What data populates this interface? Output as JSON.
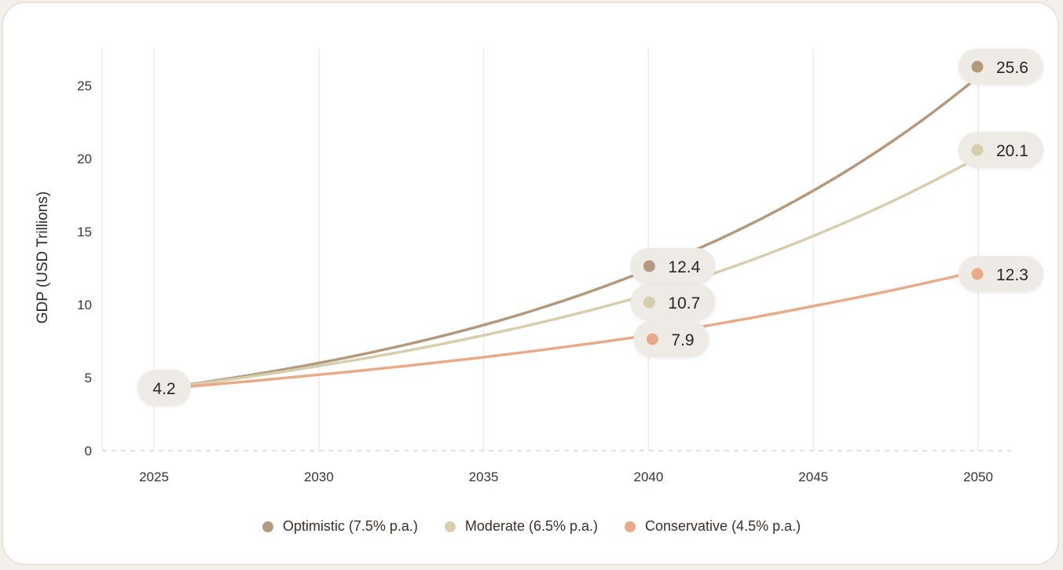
{
  "chart_data": {
    "type": "line",
    "title": "",
    "xlabel": "",
    "ylabel": "GDP (USD Trillions)",
    "x": [
      2025,
      2030,
      2035,
      2040,
      2045,
      2050
    ],
    "x_ticks": [
      "2025",
      "2030",
      "2035",
      "2040",
      "2045",
      "2050"
    ],
    "y_ticks": [
      "0",
      "5",
      "10",
      "15",
      "20",
      "25"
    ],
    "xlim": [
      2024,
      2051.2
    ],
    "ylim": [
      0,
      27
    ],
    "grid": "vertical",
    "legend_position": "bottom",
    "series": [
      {
        "name": "Optimistic (7.5% p.a.)",
        "color": "#b39a7e",
        "rate": 0.075,
        "values": [
          4.2,
          6.0,
          8.6,
          12.4,
          17.8,
          25.6
        ]
      },
      {
        "name": "Moderate (6.5% p.a.)",
        "color": "#d6ceae",
        "rate": 0.065,
        "values": [
          4.2,
          5.8,
          7.9,
          10.7,
          14.7,
          20.1
        ]
      },
      {
        "name": "Conservative (4.5% p.a.)",
        "color": "#e8ab8a",
        "rate": 0.045,
        "values": [
          4.2,
          5.2,
          6.4,
          7.9,
          9.9,
          12.3
        ]
      }
    ],
    "annotations": [
      {
        "x": 2025,
        "label": "4.2",
        "series": null
      },
      {
        "x": 2040,
        "label": "12.4",
        "series": 0
      },
      {
        "x": 2040,
        "label": "10.7",
        "series": 1
      },
      {
        "x": 2040,
        "label": "7.9",
        "series": 2
      },
      {
        "x": 2050,
        "label": "25.6",
        "series": 0
      },
      {
        "x": 2050,
        "label": "20.1",
        "series": 1
      },
      {
        "x": 2050,
        "label": "12.3",
        "series": 2
      }
    ]
  },
  "legend": [
    {
      "label": "Optimistic (7.5% p.a.)",
      "color": "#b39a7e"
    },
    {
      "label": "Moderate (6.5% p.a.)",
      "color": "#d6ceae"
    },
    {
      "label": "Conservative (4.5% p.a.)",
      "color": "#e8ab8a"
    }
  ],
  "colors": {
    "grid": "#efebe3",
    "baseline": "#d9d5d0",
    "pill": "#eeebe7"
  }
}
